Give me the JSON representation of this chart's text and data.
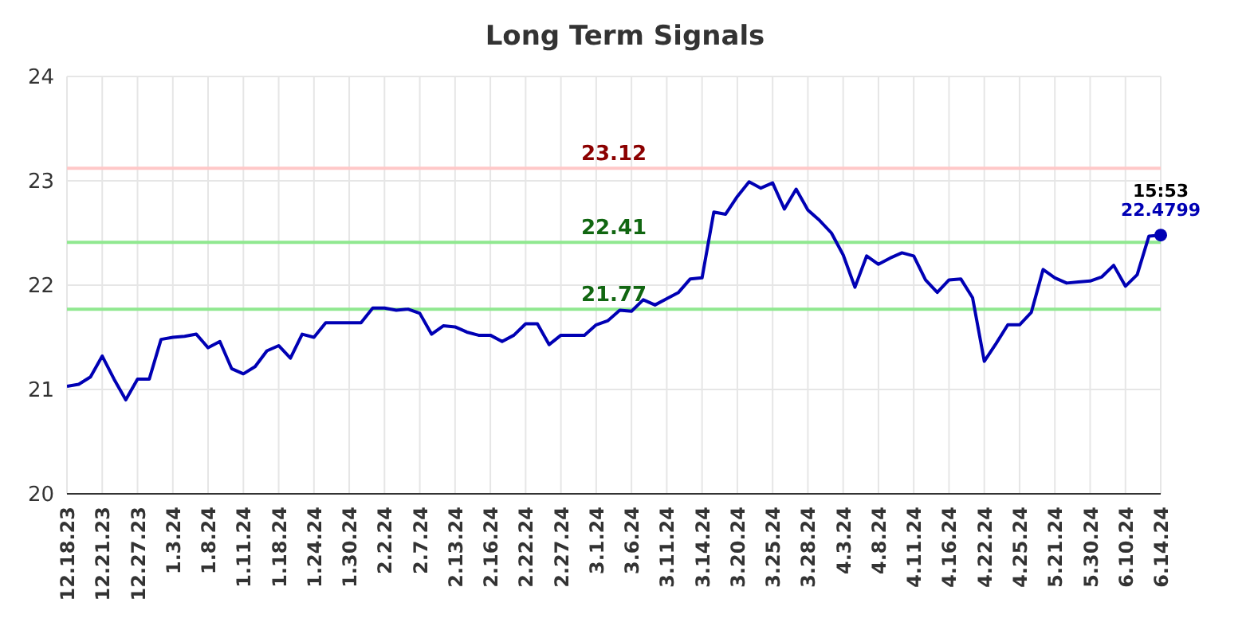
{
  "chart_data": {
    "type": "line",
    "title": "Long Term Signals",
    "categories": [
      "12.18.23",
      null,
      null,
      "12.21.23",
      null,
      null,
      "12.27.23",
      null,
      null,
      "1.3.24",
      null,
      null,
      "1.8.24",
      null,
      null,
      "1.11.24",
      null,
      null,
      "1.18.24",
      null,
      null,
      "1.24.24",
      null,
      null,
      "1.30.24",
      null,
      null,
      "2.2.24",
      null,
      null,
      "2.7.24",
      null,
      null,
      "2.13.24",
      null,
      null,
      "2.16.24",
      null,
      null,
      "2.22.24",
      null,
      null,
      "2.27.24",
      null,
      null,
      "3.1.24",
      null,
      null,
      "3.6.24",
      null,
      null,
      "3.11.24",
      null,
      null,
      "3.14.24",
      null,
      null,
      "3.20.24",
      null,
      null,
      "3.25.24",
      null,
      null,
      "3.28.24",
      null,
      null,
      "4.3.24",
      null,
      null,
      "4.8.24",
      null,
      null,
      "4.11.24",
      null,
      null,
      "4.16.24",
      null,
      null,
      "4.22.24",
      null,
      null,
      "4.25.24",
      null,
      null,
      "5.21.24",
      null,
      null,
      "5.30.24",
      null,
      null,
      "6.10.24",
      null,
      null,
      "6.14.24"
    ],
    "series": [
      {
        "color": "#0000b4",
        "values": [
          21.03,
          21.05,
          21.12,
          21.32,
          21.1,
          20.9,
          21.1,
          21.1,
          21.48,
          21.5,
          21.51,
          21.53,
          21.4,
          21.46,
          21.2,
          21.15,
          21.22,
          21.37,
          21.42,
          21.3,
          21.53,
          21.5,
          21.64,
          21.64,
          21.64,
          21.64,
          21.78,
          21.78,
          21.76,
          21.77,
          21.73,
          21.53,
          21.61,
          21.6,
          21.55,
          21.52,
          21.52,
          21.46,
          21.52,
          21.63,
          21.63,
          21.43,
          21.52,
          21.52,
          21.52,
          21.62,
          21.66,
          21.76,
          21.75,
          21.86,
          21.81,
          21.87,
          21.93,
          22.06,
          22.07,
          22.7,
          22.68,
          22.85,
          22.99,
          22.93,
          22.98,
          22.73,
          22.92,
          22.72,
          22.62,
          22.5,
          22.29,
          21.98,
          22.28,
          22.2,
          22.26,
          22.31,
          22.28,
          22.05,
          21.93,
          22.05,
          22.06,
          21.88,
          21.27,
          21.44,
          21.62,
          21.62,
          21.74,
          22.15,
          22.07,
          22.02,
          22.03,
          22.04,
          22.08,
          22.19,
          21.99,
          22.1,
          22.47,
          22.4799
        ],
        "value_labels": [
          null,
          null,
          null,
          null,
          null,
          null,
          null,
          null,
          null,
          null,
          null,
          null,
          null,
          null,
          null,
          null,
          null,
          null,
          null,
          null,
          null,
          null,
          null,
          null,
          null,
          null,
          null,
          null,
          null,
          null,
          null,
          null,
          null,
          null,
          null,
          null,
          null,
          null,
          null,
          null,
          null,
          null,
          null,
          null,
          null,
          null,
          null,
          null,
          null,
          null,
          null,
          null,
          null,
          null,
          null,
          null,
          null,
          null,
          null,
          null,
          null,
          null,
          null,
          null,
          null,
          null,
          null,
          null,
          null,
          null,
          null,
          null,
          null,
          null,
          null,
          null,
          null,
          null,
          null,
          null,
          null,
          null,
          null,
          null,
          null,
          null,
          null,
          null,
          null,
          null,
          null,
          null,
          null,
          "22.4799"
        ]
      }
    ],
    "ylim": [
      20,
      24
    ],
    "yticks": [
      20,
      21,
      22,
      23,
      24
    ],
    "grid": true,
    "marker": "none",
    "ref_lines": [
      {
        "axis": "y",
        "value": 23.12,
        "label": "23.12",
        "color": "#ffc8c8"
      },
      {
        "axis": "y",
        "value": 22.41,
        "label": "22.41",
        "color": "#90e890"
      },
      {
        "axis": "y",
        "value": 21.77,
        "label": "21.77",
        "color": "#90e890"
      }
    ],
    "annotations": [
      {
        "text": "15:53",
        "x": "6.14.24",
        "y": 22.4799
      }
    ]
  }
}
